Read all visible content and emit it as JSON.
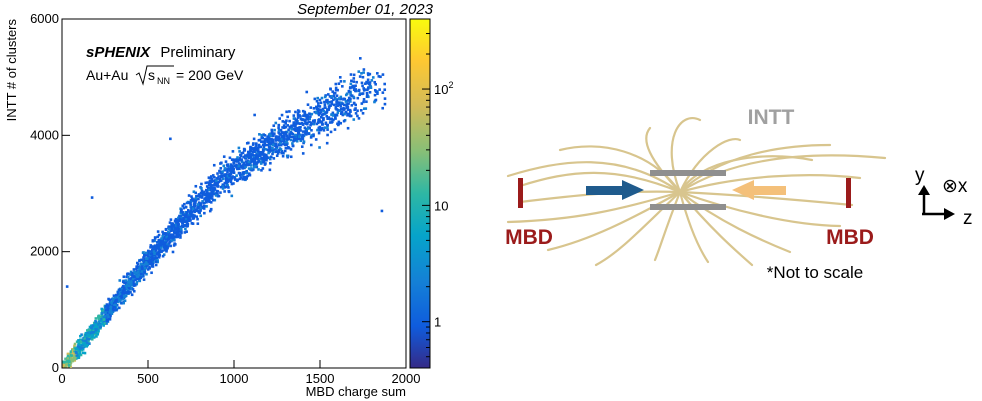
{
  "figure": {
    "date": "September 01, 2023",
    "experiment": "sPHENIX",
    "status": "Preliminary",
    "collision": "Au+Au",
    "energy_symbol": "s",
    "energy_subscript": "NN",
    "energy_value": "= 200 GeV"
  },
  "chart_data": {
    "type": "heatmap",
    "title": "",
    "xlabel": "MBD charge sum",
    "ylabel": "INTT # of clusters",
    "xlim": [
      0,
      2000
    ],
    "ylim": [
      0,
      6000
    ],
    "x_ticks": [
      0,
      500,
      1000,
      1500,
      2000
    ],
    "y_ticks": [
      0,
      2000,
      4000,
      6000
    ],
    "colorbar": {
      "scale": "log",
      "range": [
        0.4,
        400
      ],
      "tick_labels": [
        {
          "value": 1,
          "label": "1"
        },
        {
          "value": 10,
          "label": "10"
        },
        {
          "value": 100,
          "label": "10",
          "exponent": "2"
        }
      ],
      "colormap": [
        "#352a87",
        "#0f5cdd",
        "#1481d6",
        "#06a4ca",
        "#2eb7a4",
        "#87bf77",
        "#d1bb59",
        "#fec832",
        "#f9fb0e"
      ]
    },
    "trend": {
      "description": "INTT clusters vs MBD charge sum",
      "points": [
        {
          "x": 0,
          "y": 0
        },
        {
          "x": 100,
          "y": 330
        },
        {
          "x": 300,
          "y": 1100
        },
        {
          "x": 500,
          "y": 1850
        },
        {
          "x": 800,
          "y": 2850
        },
        {
          "x": 1000,
          "y": 3400
        },
        {
          "x": 1300,
          "y": 4000
        },
        {
          "x": 1600,
          "y": 4500
        },
        {
          "x": 1800,
          "y": 4800
        }
      ]
    },
    "outliers": [
      {
        "x": 630,
        "y": 3940
      },
      {
        "x": 175,
        "y": 2930
      },
      {
        "x": 1860,
        "y": 2700
      },
      {
        "x": 30,
        "y": 1400
      },
      {
        "x": 1120,
        "y": 4350
      }
    ]
  },
  "diagram": {
    "intt_label": "INTT",
    "mbd_left_label": "MBD",
    "mbd_right_label": "MBD",
    "note": "*Not to scale",
    "axis_y": "y",
    "axis_x": "⊗x",
    "axis_z": "z",
    "colors": {
      "mbd": "#9b1b1b",
      "intt_bar": "#8f8f8f",
      "intt_label": "#a0a0a0",
      "field_lines": "#d8c58e",
      "beam_left": "#1f5b8d",
      "beam_right": "#f4c07a"
    }
  }
}
